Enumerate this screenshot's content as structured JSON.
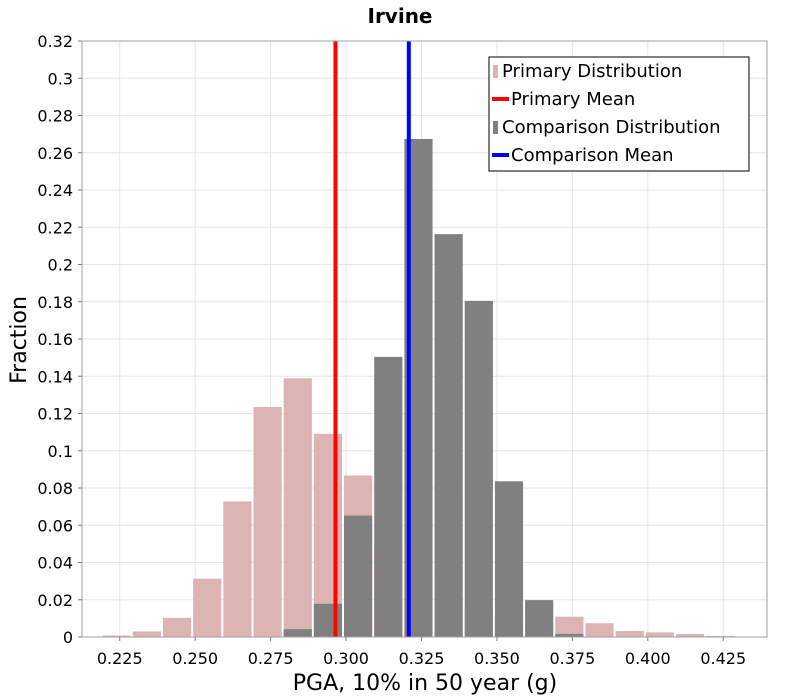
{
  "chart_data": {
    "type": "bar",
    "title": "Irvine",
    "xlabel": "PGA, 10% in 50 year (g)",
    "ylabel": "Fraction",
    "xlim": [
      0.2125,
      0.4395
    ],
    "ylim": [
      0,
      0.32
    ],
    "bin_width": 0.01,
    "xticks": [
      {
        "value": 0.225,
        "label": "0.225"
      },
      {
        "value": 0.25,
        "label": "0.250"
      },
      {
        "value": 0.275,
        "label": "0.275"
      },
      {
        "value": 0.3,
        "label": "0.300"
      },
      {
        "value": 0.325,
        "label": "0.325"
      },
      {
        "value": 0.35,
        "label": "0.350"
      },
      {
        "value": 0.375,
        "label": "0.375"
      },
      {
        "value": 0.4,
        "label": "0.400"
      },
      {
        "value": 0.425,
        "label": "0.425"
      }
    ],
    "yticks": [
      {
        "value": 0,
        "label": "0"
      },
      {
        "value": 0.02,
        "label": "0.02"
      },
      {
        "value": 0.04,
        "label": "0.04"
      },
      {
        "value": 0.06,
        "label": "0.06"
      },
      {
        "value": 0.08,
        "label": "0.08"
      },
      {
        "value": 0.1,
        "label": "0.1"
      },
      {
        "value": 0.12,
        "label": "0.12"
      },
      {
        "value": 0.14,
        "label": "0.14"
      },
      {
        "value": 0.16,
        "label": "0.16"
      },
      {
        "value": 0.18,
        "label": "0.18"
      },
      {
        "value": 0.2,
        "label": "0.2"
      },
      {
        "value": 0.22,
        "label": "0.22"
      },
      {
        "value": 0.24,
        "label": "0.24"
      },
      {
        "value": 0.26,
        "label": "0.26"
      },
      {
        "value": 0.28,
        "label": "0.28"
      },
      {
        "value": 0.3,
        "label": "0.3"
      },
      {
        "value": 0.32,
        "label": "0.32"
      }
    ],
    "grid": true,
    "legend_position": "top-right",
    "series": [
      {
        "name": "Primary Distribution",
        "kind": "histogram",
        "color": "#dcb4b4",
        "bins": [
          {
            "x": 0.219,
            "y": 0.0008
          },
          {
            "x": 0.229,
            "y": 0.003
          },
          {
            "x": 0.239,
            "y": 0.0103
          },
          {
            "x": 0.249,
            "y": 0.0313
          },
          {
            "x": 0.259,
            "y": 0.0728
          },
          {
            "x": 0.269,
            "y": 0.1235
          },
          {
            "x": 0.279,
            "y": 0.1389
          },
          {
            "x": 0.289,
            "y": 0.1091
          },
          {
            "x": 0.299,
            "y": 0.0867
          },
          {
            "x": 0.309,
            "y": 0.0496
          },
          {
            "x": 0.319,
            "y": 0.0292
          },
          {
            "x": 0.329,
            "y": 0.0158
          },
          {
            "x": 0.339,
            "y": 0.0152
          },
          {
            "x": 0.349,
            "y": 0.0122
          },
          {
            "x": 0.359,
            "y": 0.0073
          },
          {
            "x": 0.369,
            "y": 0.0109
          },
          {
            "x": 0.379,
            "y": 0.0074
          },
          {
            "x": 0.389,
            "y": 0.0032
          },
          {
            "x": 0.399,
            "y": 0.0025
          },
          {
            "x": 0.409,
            "y": 0.0016
          },
          {
            "x": 0.419,
            "y": 0.0006
          },
          {
            "x": 0.429,
            "y": 0.0002
          }
        ]
      },
      {
        "name": "Primary Mean",
        "kind": "vline",
        "color": "#ff0000",
        "x": 0.2965
      },
      {
        "name": "Comparison Distribution",
        "kind": "histogram",
        "color": "#808080",
        "bins": [
          {
            "x": 0.279,
            "y": 0.0042
          },
          {
            "x": 0.289,
            "y": 0.0178
          },
          {
            "x": 0.299,
            "y": 0.0652
          },
          {
            "x": 0.309,
            "y": 0.1504
          },
          {
            "x": 0.319,
            "y": 0.2674
          },
          {
            "x": 0.329,
            "y": 0.2163
          },
          {
            "x": 0.339,
            "y": 0.1805
          },
          {
            "x": 0.349,
            "y": 0.0836
          },
          {
            "x": 0.359,
            "y": 0.0198
          },
          {
            "x": 0.369,
            "y": 0.0017
          }
        ]
      },
      {
        "name": "Comparison Mean",
        "kind": "vline",
        "color": "#0000ff",
        "x": 0.3208
      }
    ]
  }
}
